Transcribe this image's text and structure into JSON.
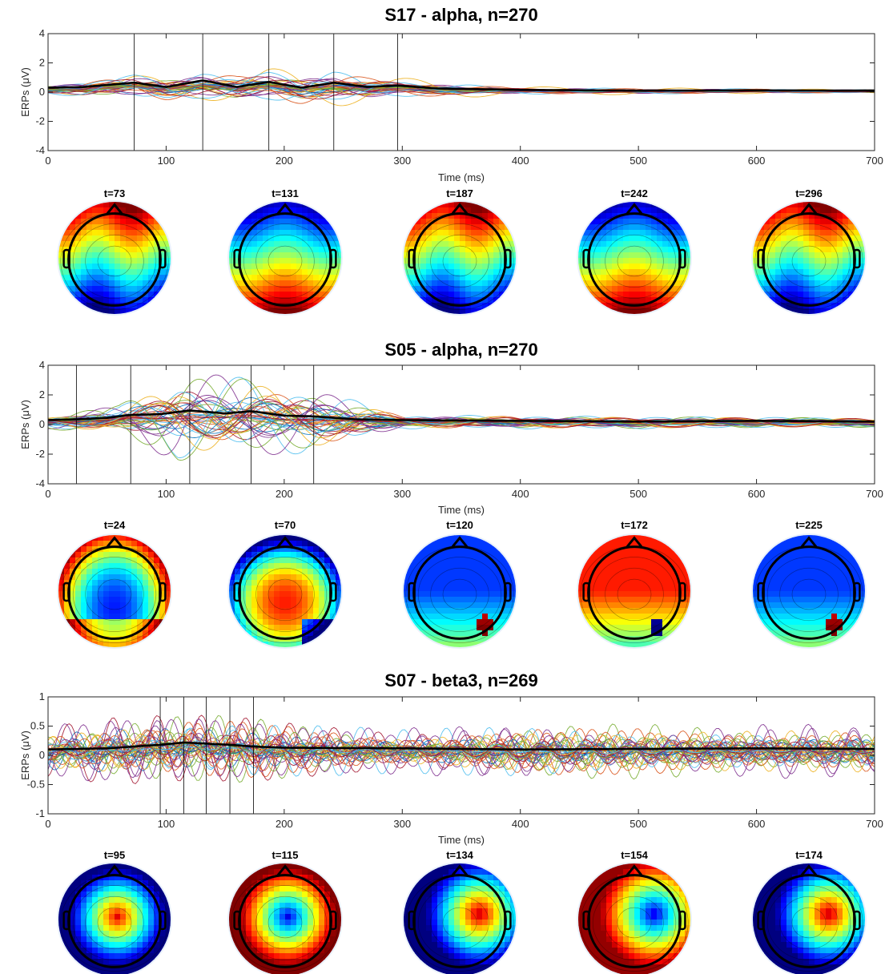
{
  "chart_data": [
    {
      "type": "line",
      "title": "S17 - alpha, n=270",
      "xlabel": "Time (ms)",
      "ylabel": "ERPs (μV)",
      "xlim": [
        0,
        700
      ],
      "ylim": [
        -4,
        4
      ],
      "xticks": [
        "0",
        "100",
        "200",
        "300",
        "400",
        "500",
        "600",
        "700"
      ],
      "yticks": [
        "-4",
        "-2",
        "0",
        "2",
        "4"
      ],
      "grid": false,
      "n_channels": 270,
      "butterfly": {
        "envelope_amplitude": [
          0.4,
          1.0,
          1.4,
          1.5,
          0.8,
          0.3,
          0.15
        ],
        "envelope_times": [
          0,
          73,
          187,
          242,
          296,
          400,
          700
        ],
        "dominant_freq_hz": 9
      },
      "mean_trace": {
        "color": "#000000",
        "x": [
          0,
          30,
          73,
          100,
          131,
          160,
          187,
          215,
          242,
          270,
          296,
          330,
          400,
          500,
          600,
          700
        ],
        "values": [
          0.3,
          0.35,
          0.65,
          0.35,
          0.8,
          0.35,
          0.7,
          0.3,
          0.65,
          0.35,
          0.45,
          0.25,
          0.15,
          0.1,
          0.12,
          0.1
        ]
      },
      "markers": [
        73,
        131,
        187,
        242,
        296
      ],
      "topomaps": [
        {
          "label": "t=73",
          "pattern": "frontal-red"
        },
        {
          "label": "t=131",
          "pattern": "frontal-blue"
        },
        {
          "label": "t=187",
          "pattern": "frontal-red"
        },
        {
          "label": "t=242",
          "pattern": "frontal-blue"
        },
        {
          "label": "t=296",
          "pattern": "frontal-red"
        }
      ]
    },
    {
      "type": "line",
      "title": "S05 - alpha, n=270",
      "xlabel": "Time (ms)",
      "ylabel": "ERPs (μV)",
      "xlim": [
        0,
        700
      ],
      "ylim": [
        -4,
        4
      ],
      "xticks": [
        "0",
        "100",
        "200",
        "300",
        "400",
        "500",
        "600",
        "700"
      ],
      "yticks": [
        "-4",
        "-2",
        "0",
        "2",
        "4"
      ],
      "grid": false,
      "n_channels": 270,
      "butterfly": {
        "envelope_amplitude": [
          0.5,
          1.0,
          3.2,
          3.0,
          2.4,
          0.5,
          0.45,
          0.35
        ],
        "envelope_times": [
          0,
          60,
          110,
          165,
          225,
          300,
          500,
          700
        ],
        "dominant_freq_hz": 10
      },
      "mean_trace": {
        "color": "#000000",
        "x": [
          0,
          24,
          50,
          70,
          95,
          120,
          150,
          172,
          200,
          225,
          260,
          300,
          400,
          500,
          600,
          700
        ],
        "values": [
          0.3,
          0.35,
          0.45,
          0.65,
          0.7,
          0.95,
          0.75,
          0.9,
          0.6,
          0.55,
          0.35,
          0.3,
          0.25,
          0.2,
          0.25,
          0.2
        ]
      },
      "markers": [
        24,
        70,
        120,
        172,
        225
      ],
      "topomaps": [
        {
          "label": "t=24",
          "pattern": "central-blue"
        },
        {
          "label": "t=70",
          "pattern": "central-red"
        },
        {
          "label": "t=120",
          "pattern": "mostly-blue"
        },
        {
          "label": "t=172",
          "pattern": "mostly-red"
        },
        {
          "label": "t=225",
          "pattern": "mostly-blue"
        }
      ]
    },
    {
      "type": "line",
      "title": "S07 - beta3, n=269",
      "xlabel": "Time (ms)",
      "ylabel": "ERPs (μV)",
      "xlim": [
        0,
        700
      ],
      "ylim": [
        -1,
        1
      ],
      "xticks": [
        "0",
        "100",
        "200",
        "300",
        "400",
        "500",
        "600",
        "700"
      ],
      "yticks": [
        "-1",
        "-0.5",
        "0",
        "0.5",
        "1"
      ],
      "grid": false,
      "n_channels": 269,
      "butterfly": {
        "envelope_amplitude": [
          0.45,
          0.6,
          0.6,
          0.4,
          0.5,
          0.5,
          0.45
        ],
        "envelope_times": [
          0,
          60,
          170,
          300,
          400,
          550,
          700
        ],
        "dominant_freq_hz": 27
      },
      "mean_trace": {
        "color": "#000000",
        "x": [
          0,
          50,
          95,
          115,
          134,
          154,
          174,
          200,
          300,
          400,
          500,
          600,
          700
        ],
        "values": [
          0.1,
          0.12,
          0.18,
          0.22,
          0.2,
          0.18,
          0.15,
          0.13,
          0.12,
          0.1,
          0.11,
          0.12,
          0.11
        ]
      },
      "markers": [
        95,
        115,
        134,
        154,
        174
      ],
      "topomaps": [
        {
          "label": "t=95",
          "pattern": "center-red"
        },
        {
          "label": "t=115",
          "pattern": "center-blue"
        },
        {
          "label": "t=134",
          "pattern": "center-red-right"
        },
        {
          "label": "t=154",
          "pattern": "center-blue-right"
        },
        {
          "label": "t=174",
          "pattern": "center-red-right"
        }
      ]
    }
  ],
  "colors": {
    "series_palette": [
      "#0072BD",
      "#D95319",
      "#EDB120",
      "#7E2F8E",
      "#77AC30",
      "#4DBEEE",
      "#A2142F"
    ],
    "axis": "#262626",
    "mean_trace": "#000000",
    "marker_line": "#000000"
  }
}
